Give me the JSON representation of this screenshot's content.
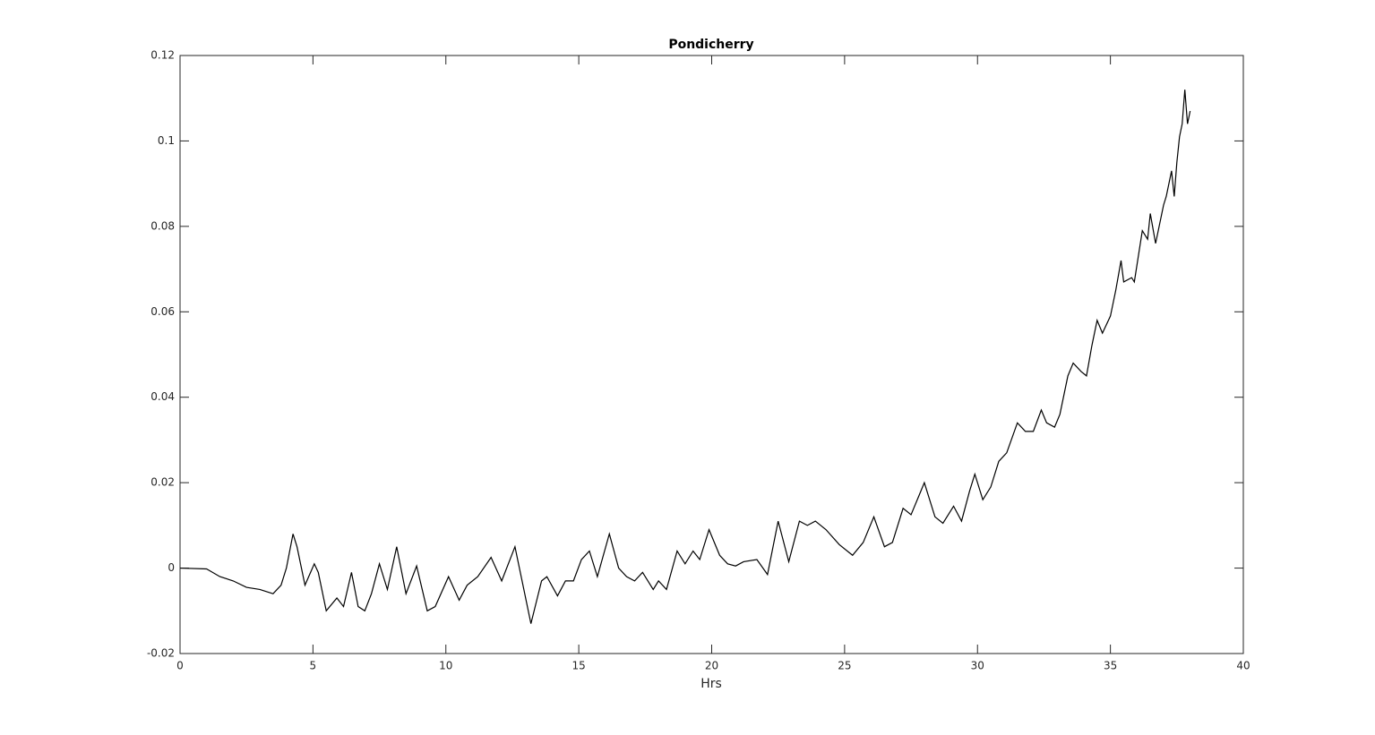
{
  "chart_data": {
    "type": "line",
    "title": "Pondicherry",
    "xlabel": "Hrs",
    "color": "#000000",
    "x": [
      0,
      1,
      1.5,
      2,
      2.5,
      3,
      3.5,
      3.8,
      4,
      4.25,
      4.4,
      4.7,
      5.05,
      5.2,
      5.5,
      5.9,
      6.15,
      6.45,
      6.7,
      6.95,
      7.2,
      7.5,
      7.8,
      8.15,
      8.5,
      8.9,
      9.3,
      9.6,
      10.1,
      10.5,
      10.8,
      11.2,
      11.7,
      12.1,
      12.6,
      12.9,
      13.2,
      13.6,
      13.8,
      14.2,
      14.5,
      14.8,
      15.1,
      15.4,
      15.7,
      16.15,
      16.5,
      16.8,
      17.1,
      17.4,
      17.8,
      18,
      18.3,
      18.7,
      19,
      19.3,
      19.55,
      19.9,
      20.3,
      20.6,
      20.9,
      21.2,
      21.7,
      22.1,
      22.5,
      22.9,
      23.3,
      23.6,
      23.9,
      24.3,
      24.8,
      25.3,
      25.7,
      26.1,
      26.5,
      26.8,
      27.2,
      27.5,
      27.8,
      28,
      28.4,
      28.7,
      29.1,
      29.4,
      29.7,
      29.9,
      30.2,
      30.5,
      30.8,
      31.1,
      31.5,
      31.8,
      32.1,
      32.4,
      32.6,
      32.9,
      33.1,
      33.4,
      33.6,
      33.9,
      34.1,
      34.3,
      34.5,
      34.7,
      35,
      35.2,
      35.4,
      35.5,
      35.8,
      35.9,
      36.2,
      36.4,
      36.5,
      36.7,
      37,
      37.1,
      37.3,
      37.4,
      37.5,
      37.6,
      37.7,
      37.8,
      37.9,
      38
    ],
    "y": [
      0,
      -0.0002,
      -0.002,
      -0.003,
      -0.0045,
      -0.005,
      -0.006,
      -0.004,
      0,
      0.008,
      0.005,
      -0.004,
      0.001,
      -0.001,
      -0.01,
      -0.007,
      -0.009,
      -0.001,
      -0.009,
      -0.01,
      -0.006,
      0.001,
      -0.005,
      0.005,
      -0.006,
      0.0005,
      -0.01,
      -0.009,
      -0.002,
      -0.0075,
      -0.004,
      -0.002,
      0.0025,
      -0.003,
      0.005,
      -0.004,
      -0.013,
      -0.003,
      -0.002,
      -0.0065,
      -0.003,
      -0.003,
      0.002,
      0.004,
      -0.002,
      0.008,
      0,
      -0.002,
      -0.003,
      -0.001,
      -0.005,
      -0.003,
      -0.005,
      0.004,
      0.001,
      0.004,
      0.002,
      0.009,
      0.003,
      0.001,
      0.0005,
      0.0015,
      0.002,
      -0.0015,
      0.011,
      0.0015,
      0.011,
      0.01,
      0.011,
      0.009,
      0.0055,
      0.003,
      0.006,
      0.012,
      0.005,
      0.006,
      0.014,
      0.0125,
      0.017,
      0.02,
      0.012,
      0.0105,
      0.0145,
      0.011,
      0.018,
      0.022,
      0.016,
      0.019,
      0.025,
      0.027,
      0.034,
      0.032,
      0.032,
      0.037,
      0.034,
      0.033,
      0.036,
      0.045,
      0.048,
      0.046,
      0.045,
      0.052,
      0.058,
      0.055,
      0.059,
      0.065,
      0.072,
      0.067,
      0.068,
      0.067,
      0.079,
      0.077,
      0.083,
      0.076,
      0.085,
      0.087,
      0.093,
      0.087,
      0.095,
      0.101,
      0.104,
      0.112,
      0.104,
      0.107
    ],
    "xlim": [
      0,
      40
    ],
    "xticks": [
      0,
      5,
      10,
      15,
      20,
      25,
      30,
      35,
      40
    ],
    "ylim": [
      -0.02,
      0.12
    ],
    "yticks": [
      -0.02,
      0,
      0.02,
      0.04,
      0.06,
      0.08,
      0.1,
      0.12
    ]
  }
}
